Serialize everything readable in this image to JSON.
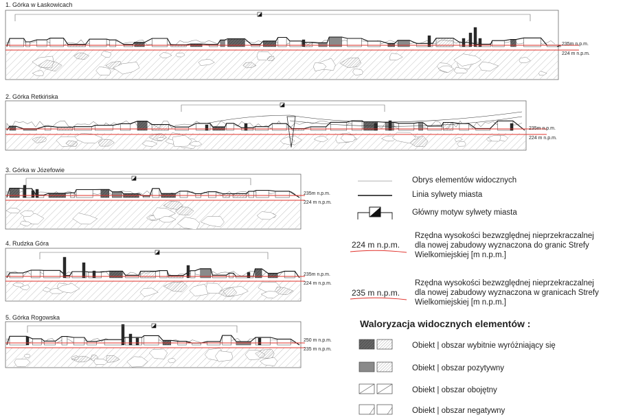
{
  "panels": [
    {
      "title": "1. Górka w Łaskowicach",
      "upper_label": "235m n.p.m.",
      "lower_label": "224 m n.p.m."
    },
    {
      "title": "2. Górka Retkińska",
      "upper_label": "235m n.p.m.",
      "lower_label": "224 m n.p.m."
    },
    {
      "title": "3. Górka w Józefowie",
      "upper_label": "235m n.p.m.",
      "lower_label": "224 m n.p.m."
    },
    {
      "title": "4. Rudzka Góra",
      "upper_label": "235m n.p.m.",
      "lower_label": "224 m n.p.m."
    },
    {
      "title": "5. Górka Rogowska",
      "upper_label": "250 m n.p.m.",
      "lower_label": "235 m n.p.m."
    }
  ],
  "legend": {
    "outline": "Obrys elementów widocznych",
    "skyline": "Linia sylwety miasta",
    "main_motif": "Główny motyw sylwety miasta",
    "red224_value": "224 m n.p.m.",
    "red224_text": [
      "Rzędna wysokości bezwzględnej nieprzekraczalnej",
      "dla nowej zabudowy wyznaczona do granic Strefy",
      "Wielkomiejskiej [m n.p.m.]"
    ],
    "red235_value": "235 m n.p.m.",
    "red235_text": [
      "Rzędna wysokości bezwzględnej nieprzekraczalnej",
      "dla nowej zabudowy wyznaczona w granicach Strefy",
      "Wielkomiejskiej [m n.p.m.]"
    ]
  },
  "valuation": {
    "heading": "Waloryzacja widocznych elementów :",
    "items": [
      {
        "label": "Obiekt | obszar wybitnie wyróżniający się",
        "level": "outstanding"
      },
      {
        "label": "Obiekt | obszar pozytywny",
        "level": "positive"
      },
      {
        "label": "Obiekt | obszar obojętny",
        "level": "neutral"
      },
      {
        "label": "Obiekt | obszar negatywny",
        "level": "negative"
      }
    ]
  },
  "colors": {
    "red_line": "#e0302a",
    "skyline": "#111111",
    "outline": "#888888",
    "dark_fill": "#555555",
    "mid_fill": "#8a8a8a"
  }
}
